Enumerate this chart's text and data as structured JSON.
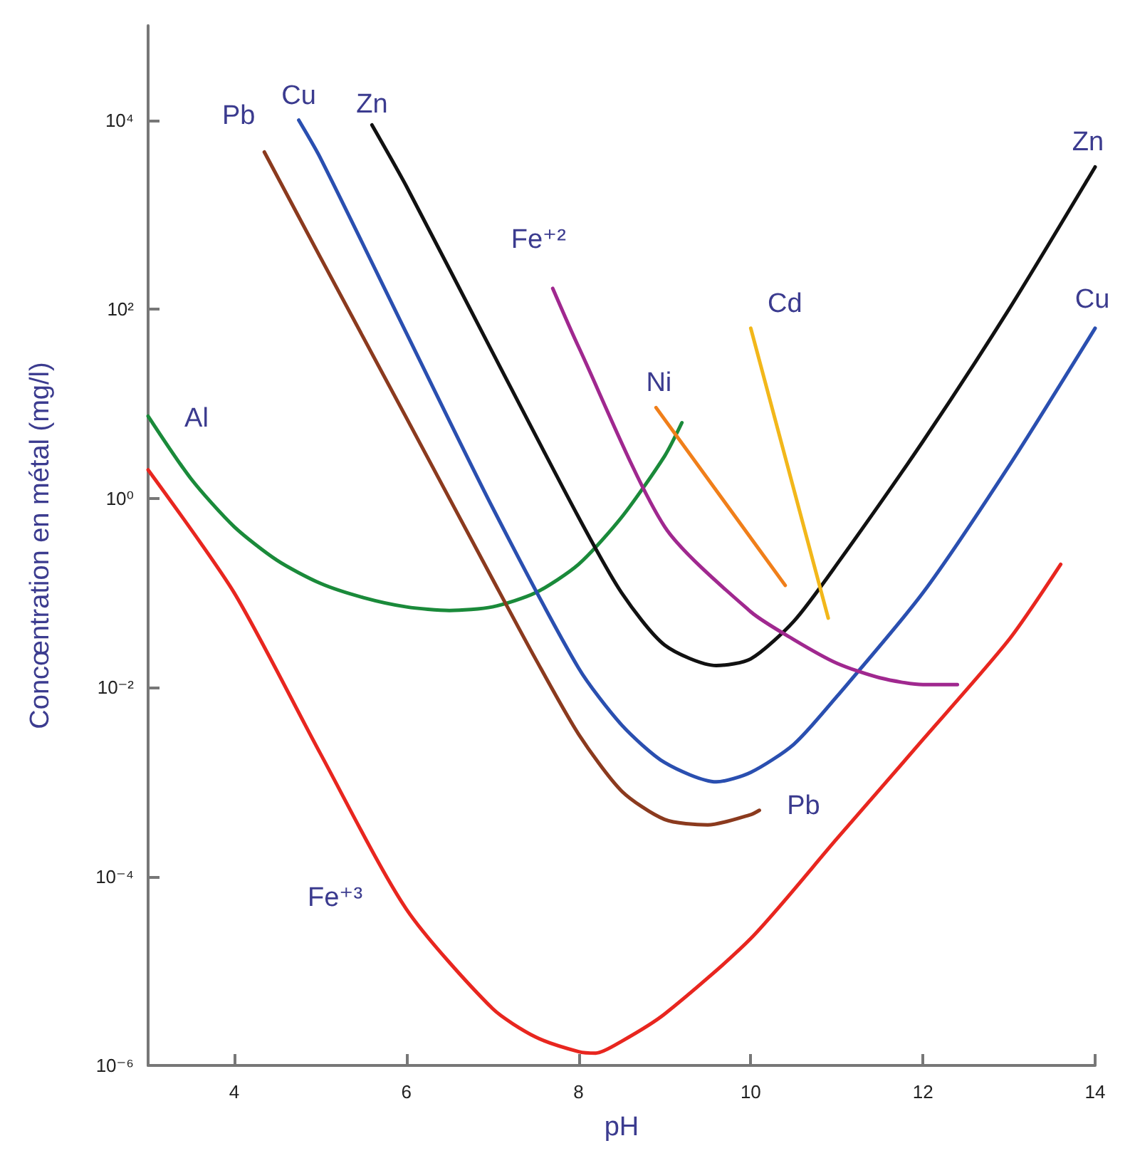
{
  "chart_data": {
    "type": "line",
    "xlabel": "pH",
    "ylabel": "Concœntration en métal (mg/l)",
    "xlim": [
      3,
      14
    ],
    "xticks": [
      4,
      6,
      8,
      10,
      12,
      14
    ],
    "ylim": [
      1e-06,
      100000
    ],
    "log": "y",
    "yticks": [
      {
        "value": 1e-06,
        "label": "10⁻⁶"
      },
      {
        "value": 0.0001,
        "label": "10⁻⁴"
      },
      {
        "value": 0.01,
        "label": "10⁻²"
      },
      {
        "value": 1,
        "label": "10⁰"
      },
      {
        "value": 100,
        "label": "10²"
      },
      {
        "value": 10000,
        "label": "10⁴"
      }
    ],
    "grid": false,
    "marker": "none",
    "line_style": "solid",
    "series": [
      {
        "color": "#e8261f",
        "x": [
          3,
          4,
          5,
          6,
          7,
          7.5,
          8,
          8.2,
          8.5,
          9,
          10,
          11,
          12,
          13,
          13.6
        ],
        "values": [
          2,
          0.1,
          0.002,
          4.5e-05,
          4e-06,
          2e-06,
          1.4e-06,
          1.35e-06,
          1.8e-06,
          3.5e-06,
          2.2e-05,
          0.00025,
          0.0028,
          0.032,
          0.2
        ]
      },
      {
        "color": "#1a8a3a",
        "x": [
          3,
          3.5,
          4,
          4.5,
          5,
          5.5,
          6,
          6.5,
          7,
          7.5,
          8,
          8.5,
          9,
          9.2
        ],
        "values": [
          7.4,
          1.6,
          0.5,
          0.22,
          0.126,
          0.089,
          0.071,
          0.065,
          0.071,
          0.1,
          0.2,
          0.63,
          2.8,
          6.3
        ]
      },
      {
        "color": "#8b3a1e",
        "x": [
          4.35,
          5,
          6,
          7,
          7.5,
          8,
          8.5,
          9,
          9.5,
          10,
          10.1
        ],
        "values": [
          4600,
          355,
          7.1,
          0.14,
          0.02,
          0.0032,
          0.0008,
          0.0004,
          0.00035,
          0.00045,
          0.0005
        ]
      },
      {
        "color": "#2a4fb0",
        "x": [
          4.75,
          5,
          6,
          7,
          8,
          8.5,
          9,
          9.6,
          10,
          10.5,
          11,
          12,
          13,
          14
        ],
        "values": [
          10000,
          4000,
          56,
          0.8,
          0.016,
          0.004,
          0.0016,
          0.001,
          0.00126,
          0.0025,
          0.008,
          0.1,
          2.2,
          63
        ]
      },
      {
        "color": "#111111",
        "x": [
          5.6,
          6,
          7,
          8,
          8.5,
          9,
          9.6,
          10,
          10.5,
          11,
          12,
          13,
          14
        ],
        "values": [
          8900,
          2000,
          35,
          0.63,
          0.1,
          0.028,
          0.017,
          0.02,
          0.05,
          0.2,
          4,
          100,
          3200
        ]
      },
      {
        "color": "#a0288f",
        "x": [
          7.7,
          8,
          9,
          10,
          10.5,
          11,
          11.5,
          12,
          12.4
        ],
        "values": [
          166,
          40,
          0.5,
          0.063,
          0.032,
          0.018,
          0.0126,
          0.0107,
          0.0107
        ]
      },
      {
        "color": "#f07f1a",
        "x": [
          8.9,
          10.4
        ],
        "values": [
          9.1,
          0.12
        ]
      },
      {
        "color": "#f2b71a",
        "x": [
          10,
          10.9
        ],
        "values": [
          63,
          0.054
        ]
      }
    ],
    "annotations": [
      {
        "text": "Al",
        "x": 3,
        "y": 7.4
      },
      {
        "text": "Pb",
        "x": 4.35,
        "y": 4600
      },
      {
        "text": "Cu",
        "x": 4.75,
        "y": 10000
      },
      {
        "text": "Zn",
        "x": 5.6,
        "y": 8900
      },
      {
        "text": "Fe⁺²",
        "x": 7.7,
        "y": 166
      },
      {
        "text": "Cd",
        "x": 10,
        "y": 63
      },
      {
        "text": "Ni",
        "x": 8.9,
        "y": 9.1
      },
      {
        "text": "Pb",
        "x": 10.1,
        "y": 0.0005
      },
      {
        "text": "Zn",
        "x": 14,
        "y": 3200
      },
      {
        "text": "Cu",
        "x": 14,
        "y": 63
      },
      {
        "text": "Fe⁺³",
        "x": 5.8,
        "y": 0.0001
      }
    ]
  }
}
